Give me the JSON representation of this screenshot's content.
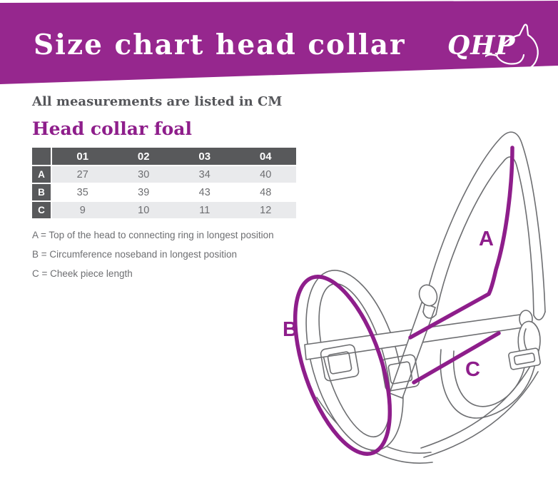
{
  "header": {
    "title": "Size chart head collar",
    "logo_text": "QHP",
    "banner_color": "#96278E"
  },
  "intro": {
    "note": "All measurements are listed in CM",
    "section_title": "Head collar foal"
  },
  "size_table": {
    "corner_label": "",
    "columns": [
      "01",
      "02",
      "03",
      "04"
    ],
    "rows": [
      {
        "label": "A",
        "values": [
          "27",
          "30",
          "34",
          "40"
        ]
      },
      {
        "label": "B",
        "values": [
          "35",
          "39",
          "43",
          "48"
        ]
      },
      {
        "label": "C",
        "values": [
          "9",
          "10",
          "11",
          "12"
        ]
      }
    ],
    "header_bg": "#58595B",
    "alt_row_bg": "#E9EAEC",
    "value_color": "#6D6E71"
  },
  "legend": {
    "items": [
      "A = Top of the head to connecting ring in longest position",
      "B = Circumference noseband in longest position",
      "C = Cheek piece length"
    ]
  },
  "diagram": {
    "label_a": "A",
    "label_b": "B",
    "label_c": "C",
    "measure_color": "#8E1E8B",
    "outline_color": "#6D6E71"
  }
}
